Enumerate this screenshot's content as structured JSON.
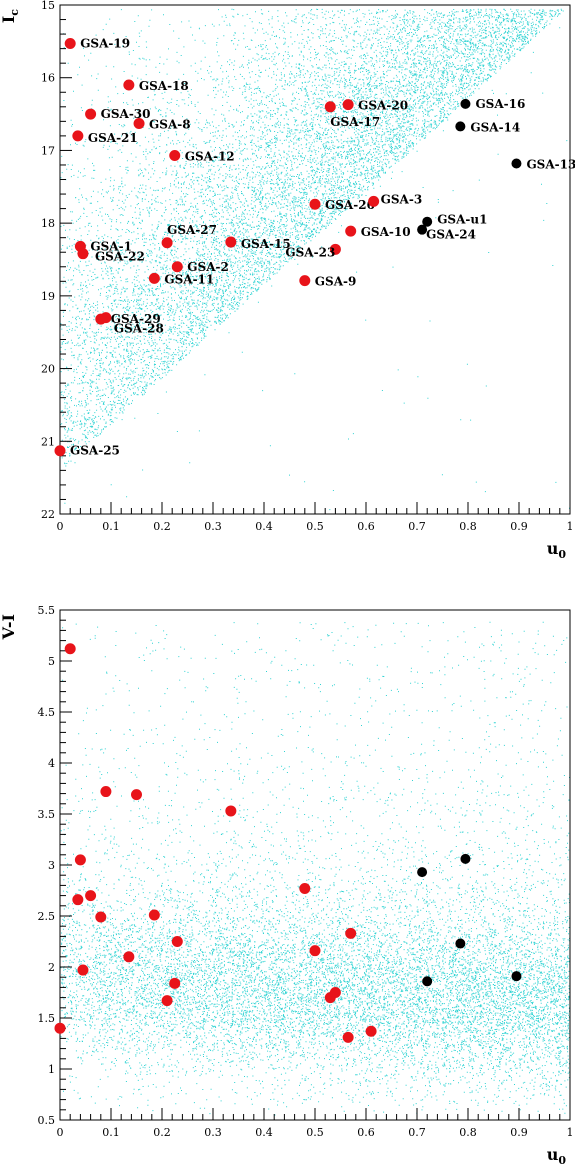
{
  "chart_data": [
    {
      "type": "scatter",
      "xlabel": "u",
      "xlabel_sub": "0",
      "ylabel": "I",
      "ylabel_sub": "c",
      "xlim": [
        0,
        1
      ],
      "ylim": [
        15,
        22
      ],
      "y_inverted": true,
      "x_ticks": [
        "0",
        "0.1",
        "0.2",
        "0.3",
        "0.4",
        "0.5",
        "0.6",
        "0.7",
        "0.8",
        "0.9",
        "1"
      ],
      "y_ticks": [
        "15",
        "16",
        "17",
        "18",
        "19",
        "20",
        "21",
        "22"
      ],
      "background_color": "#2fd3d3",
      "series": [
        {
          "color": "#e8141a",
          "points": [
            {
              "x": 0.02,
              "y": 15.53,
              "label": "GSA-19"
            },
            {
              "x": 0.135,
              "y": 16.1,
              "label": "GSA-18"
            },
            {
              "x": 0.06,
              "y": 16.5,
              "label": "GSA-30"
            },
            {
              "x": 0.155,
              "y": 16.63,
              "label": "GSA-8"
            },
            {
              "x": 0.035,
              "y": 16.8,
              "label": "GSA-21"
            },
            {
              "x": 0.225,
              "y": 17.07,
              "label": "GSA-12"
            },
            {
              "x": 0.53,
              "y": 16.4,
              "label": "GSA-17"
            },
            {
              "x": 0.565,
              "y": 16.37,
              "label": "GSA-20"
            },
            {
              "x": 0.5,
              "y": 17.74,
              "label": "GSA-26"
            },
            {
              "x": 0.615,
              "y": 17.7,
              "label": "GSA-3"
            },
            {
              "x": 0.57,
              "y": 18.11,
              "label": "GSA-10"
            },
            {
              "x": 0.54,
              "y": 18.36,
              "label": "GSA-23"
            },
            {
              "x": 0.21,
              "y": 18.27,
              "label": "GSA-27"
            },
            {
              "x": 0.335,
              "y": 18.26,
              "label": "GSA-15"
            },
            {
              "x": 0.04,
              "y": 18.32,
              "label": "GSA-1"
            },
            {
              "x": 0.045,
              "y": 18.42,
              "label": "GSA-22"
            },
            {
              "x": 0.23,
              "y": 18.6,
              "label": "GSA-2"
            },
            {
              "x": 0.185,
              "y": 18.76,
              "label": "GSA-11"
            },
            {
              "x": 0.48,
              "y": 18.79,
              "label": "GSA-9"
            },
            {
              "x": 0.08,
              "y": 19.32,
              "label": "GSA-29"
            },
            {
              "x": 0.09,
              "y": 19.3,
              "label": "GSA-28"
            },
            {
              "x": 0.0,
              "y": 21.13,
              "label": "GSA-25"
            }
          ]
        },
        {
          "color": "#000000",
          "points": [
            {
              "x": 0.795,
              "y": 16.36,
              "label": "GSA-16"
            },
            {
              "x": 0.785,
              "y": 16.67,
              "label": "GSA-14"
            },
            {
              "x": 0.895,
              "y": 17.18,
              "label": "GSA-13"
            },
            {
              "x": 0.72,
              "y": 17.98,
              "label": "GSA-u1"
            },
            {
              "x": 0.71,
              "y": 18.09,
              "label": "GSA-24"
            }
          ]
        }
      ]
    },
    {
      "type": "scatter",
      "xlabel": "u",
      "xlabel_sub": "0",
      "ylabel": "V-I",
      "xlim": [
        0,
        1
      ],
      "ylim": [
        0.5,
        5.5
      ],
      "x_ticks": [
        "0",
        "0.1",
        "0.2",
        "0.3",
        "0.4",
        "0.5",
        "0.6",
        "0.7",
        "0.8",
        "0.9",
        "1"
      ],
      "y_ticks": [
        "0.5",
        "1",
        "1.5",
        "2",
        "2.5",
        "3",
        "3.5",
        "4",
        "4.5",
        "5",
        "5.5"
      ],
      "background_color": "#2fd3d3",
      "series": [
        {
          "color": "#e8141a",
          "points": [
            {
              "x": 0.02,
              "y": 5.12
            },
            {
              "x": 0.09,
              "y": 3.72
            },
            {
              "x": 0.15,
              "y": 3.69
            },
            {
              "x": 0.335,
              "y": 3.53
            },
            {
              "x": 0.04,
              "y": 3.05
            },
            {
              "x": 0.06,
              "y": 2.7
            },
            {
              "x": 0.035,
              "y": 2.66
            },
            {
              "x": 0.08,
              "y": 2.49
            },
            {
              "x": 0.185,
              "y": 2.51
            },
            {
              "x": 0.48,
              "y": 2.77
            },
            {
              "x": 0.57,
              "y": 2.33
            },
            {
              "x": 0.23,
              "y": 2.25
            },
            {
              "x": 0.5,
              "y": 2.16
            },
            {
              "x": 0.135,
              "y": 2.1
            },
            {
              "x": 0.045,
              "y": 1.97
            },
            {
              "x": 0.225,
              "y": 1.84
            },
            {
              "x": 0.21,
              "y": 1.67
            },
            {
              "x": 0.53,
              "y": 1.7
            },
            {
              "x": 0.54,
              "y": 1.75
            },
            {
              "x": 0.565,
              "y": 1.31
            },
            {
              "x": 0.61,
              "y": 1.37
            },
            {
              "x": 0.0,
              "y": 1.4
            }
          ]
        },
        {
          "color": "#000000",
          "points": [
            {
              "x": 0.71,
              "y": 2.93
            },
            {
              "x": 0.795,
              "y": 3.06
            },
            {
              "x": 0.785,
              "y": 2.23
            },
            {
              "x": 0.72,
              "y": 1.86
            },
            {
              "x": 0.895,
              "y": 1.91
            }
          ]
        }
      ]
    }
  ]
}
